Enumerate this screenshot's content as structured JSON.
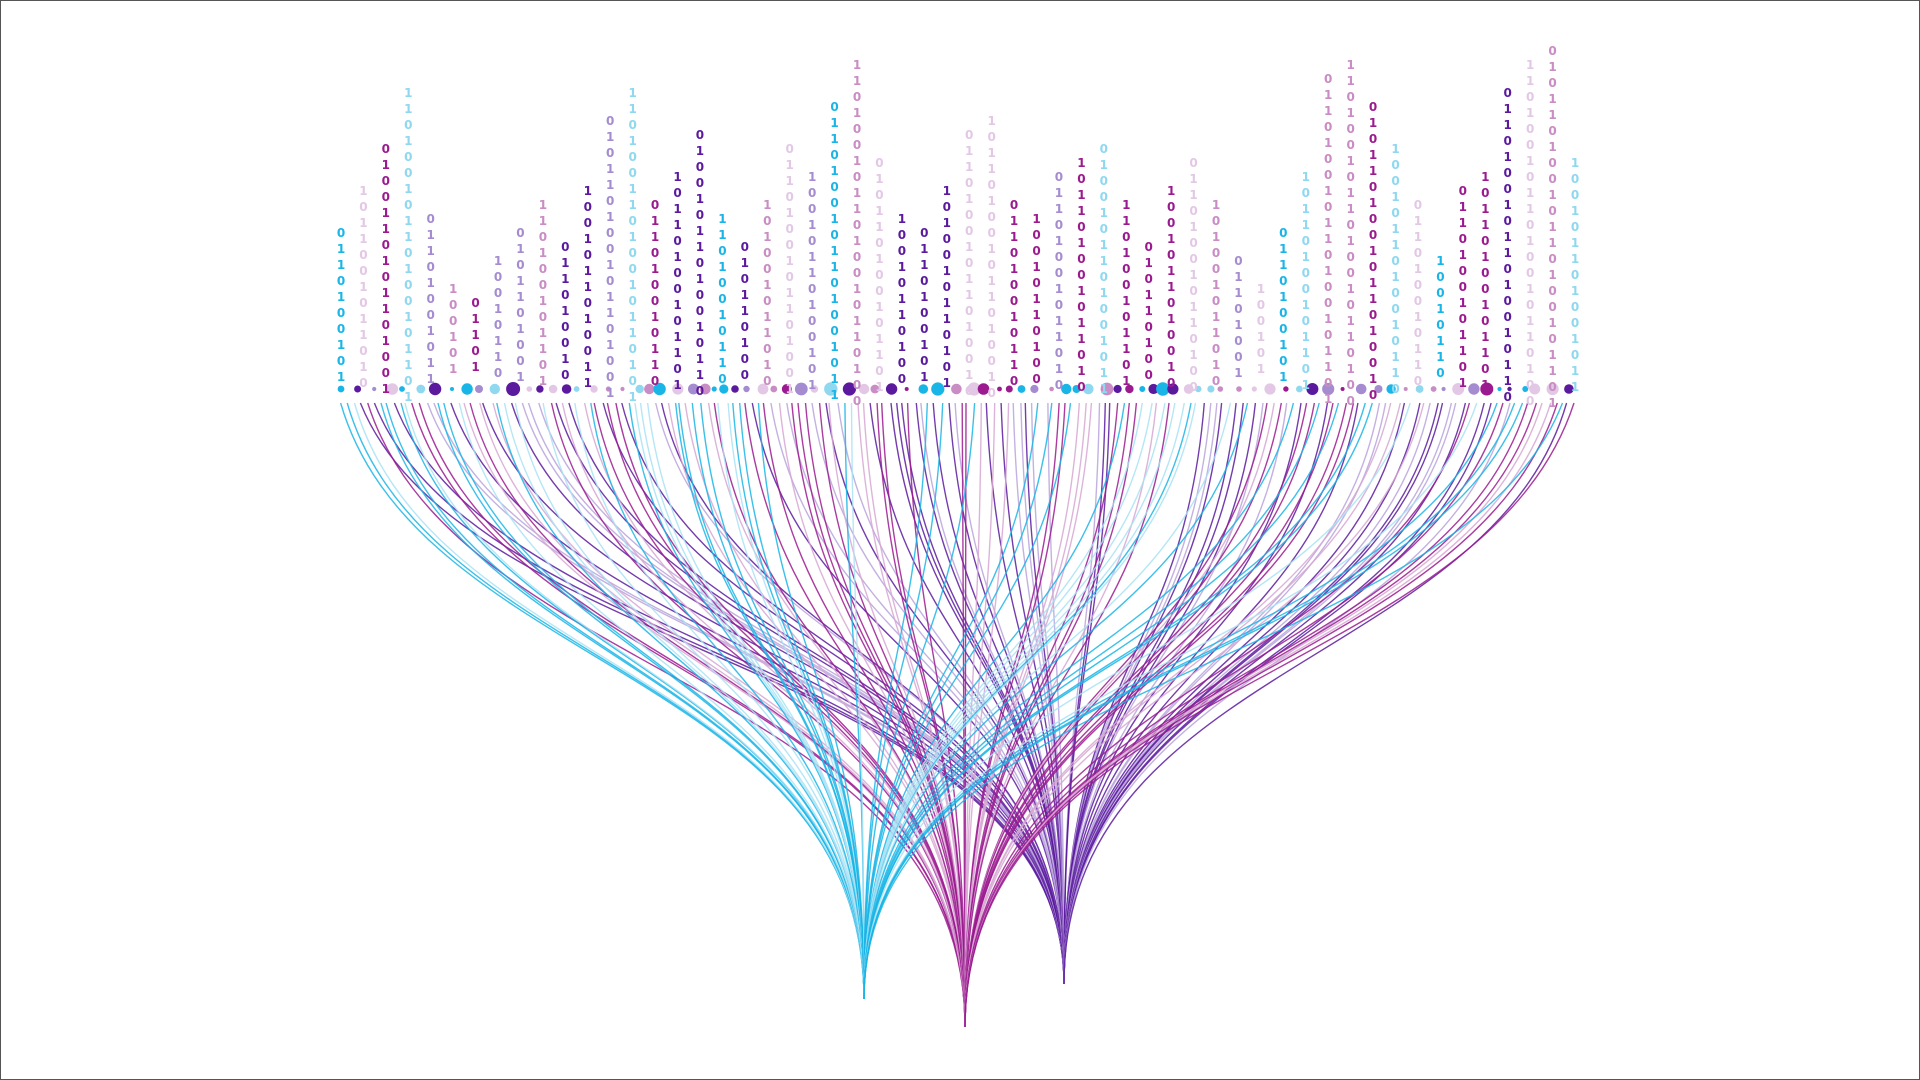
{
  "binary_columns": [
    "0110100101",
    "1011001011010",
    "0100110101101001",
    "11010010110100101101",
    "01101001011",
    "100101",
    "01101",
    "10010110",
    "0101101001",
    "110100101101",
    "011010010",
    "1001011010011",
    "010110100101101001",
    "11010011010010110101",
    "011010010110",
    "10110100101101",
    "01001011010010110",
    "11010010110",
    "010110100",
    "101001011010",
    "0110100101101001",
    "10010110100101",
    "0110100101101001011",
    "1101001011010010110100",
    "010110100101101",
    "10010110100",
    "0110100101",
    "1010010110101",
    "01101001011010010",
    "101101001011010010",
    "011010010110",
    "10010110100",
    "01101001011010",
    "101101001011010",
    "0100101101001011",
    "110100101101",
    "010110100",
    "1001011010010",
    "011010010110100",
    "101001011010",
    "01101001",
    "100101",
    "0110100101",
    "10110100101101",
    "011010010110100101101",
    "1101001011010010110100",
    "0101101001011010010",
    "1001011010010110",
    "011010010110",
    "10010110",
    "0110100101101",
    "10110100101101",
    "01101001011010010110",
    "1101001011010010110100",
    "01011010010110100101101",
    "100101101001011"
  ]
}
